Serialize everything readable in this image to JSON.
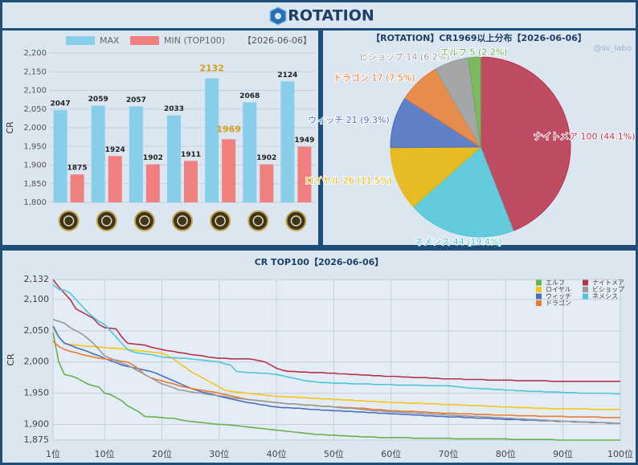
{
  "header": {
    "title": "ROTATION"
  },
  "chart_data": [
    {
      "type": "bar",
      "y_label": "CR",
      "subtitle": "【2026-06-06】",
      "highlight_color": "#d4a017",
      "categories": [
        null,
        null,
        null,
        null,
        null,
        null,
        null
      ],
      "series": [
        {
          "name": "MAX",
          "color": "#87ceeb",
          "values": [
            2047,
            2059,
            2057,
            2033,
            2132,
            2068,
            2124
          ]
        },
        {
          "name": "MIN (TOP100)",
          "color": "#f08080",
          "values": [
            1875,
            1924,
            1902,
            1911,
            1969,
            1902,
            1949
          ]
        }
      ],
      "ylim": [
        1800,
        2200
      ],
      "yticks": [
        {
          "value": 1800,
          "label": "1,800"
        },
        {
          "value": 1850,
          "label": "1,850"
        },
        {
          "value": 1900,
          "label": "1,900"
        },
        {
          "value": 1950,
          "label": "1,950"
        },
        {
          "value": 2000,
          "label": "2,000"
        },
        {
          "value": 2050,
          "label": "2,050"
        },
        {
          "value": 2100,
          "label": "2,100"
        },
        {
          "value": 2150,
          "label": "2,150"
        },
        {
          "value": 2200,
          "label": "2,200"
        }
      ],
      "grid": true
    },
    {
      "type": "pie",
      "title": "【ROTATION】CR1969以上分布【2026-06-06】",
      "watermark": "@sv_labo",
      "categories": [
        "ナイトメア",
        "ネメシス",
        "ロイヤル",
        "ウィッチ",
        "ドラゴン",
        "ビショップ",
        "エルフ"
      ],
      "values": [
        100,
        44,
        26,
        21,
        17,
        14,
        5
      ],
      "value_labels": [
        "ナイトメア 100 (44.1%)",
        "ネメシス 44 (19.4%)",
        "ロイヤル 26 (11.5%)",
        "ウィッチ 21 (9.3%)",
        "ドラゴン 17 (7.5%)",
        "ビショップ 14 (6.2%)",
        "エルフ 5 (2.2%)"
      ],
      "colors": [
        "#b8304a",
        "#4fc6d8",
        "#e8b400",
        "#4a6fc0",
        "#e87b30",
        "#9a9a9a",
        "#6ab04c"
      ]
    },
    {
      "type": "line",
      "title": "CR TOP100【2026-06-06】",
      "y_label": "CR",
      "grid": true,
      "x": [
        1,
        2,
        3,
        4,
        5,
        6,
        7,
        8,
        9,
        10,
        11,
        12,
        13,
        14,
        15,
        16,
        17,
        18,
        19,
        20,
        21,
        22,
        23,
        24,
        25,
        26,
        27,
        28,
        29,
        30,
        31,
        32,
        33,
        34,
        35,
        36,
        37,
        38,
        39,
        40,
        41,
        42,
        43,
        44,
        45,
        46,
        47,
        48,
        49,
        50,
        51,
        52,
        53,
        54,
        55,
        56,
        57,
        58,
        59,
        60,
        61,
        62,
        63,
        64,
        65,
        66,
        67,
        68,
        69,
        70,
        71,
        72,
        73,
        74,
        75,
        76,
        77,
        78,
        79,
        80,
        81,
        82,
        83,
        84,
        85,
        86,
        87,
        88,
        89,
        90,
        91,
        92,
        93,
        94,
        95,
        96,
        97,
        98,
        99,
        100
      ],
      "xlim": [
        1,
        100
      ],
      "xticks": [
        {
          "value": 1,
          "label": "1位"
        },
        {
          "value": 10,
          "label": "10位"
        },
        {
          "value": 20,
          "label": "20位"
        },
        {
          "value": 30,
          "label": "30位"
        },
        {
          "value": 40,
          "label": "40位"
        },
        {
          "value": 50,
          "label": "50位"
        },
        {
          "value": 60,
          "label": "60位"
        },
        {
          "value": 70,
          "label": "70位"
        },
        {
          "value": 80,
          "label": "80位"
        },
        {
          "value": 90,
          "label": "90位"
        },
        {
          "value": 100,
          "label": "100位"
        }
      ],
      "ylim": [
        1875,
        2132
      ],
      "yticks": [
        {
          "value": 1875,
          "label": "1,875"
        },
        {
          "value": 1900,
          "label": "1,900"
        },
        {
          "value": 1950,
          "label": "1,950"
        },
        {
          "value": 2000,
          "label": "2,000"
        },
        {
          "value": 2050,
          "label": "2,050"
        },
        {
          "value": 2100,
          "label": "2,100"
        },
        {
          "value": 2132,
          "label": "2,132"
        }
      ],
      "series": [
        {
          "name": "エルフ",
          "color": "#6ab04c",
          "values": [
            2047,
            2000,
            1980,
            1978,
            1975,
            1970,
            1965,
            1962,
            1960,
            1950,
            1948,
            1943,
            1938,
            1930,
            1925,
            1920,
            1913,
            1912,
            1912,
            1911,
            1910,
            1910,
            1908,
            1906,
            1905,
            1904,
            1903,
            1902,
            1901,
            1900,
            1900,
            1899,
            1898,
            1897,
            1896,
            1895,
            1894,
            1893,
            1892,
            1891,
            1890,
            1889,
            1888,
            1887,
            1886,
            1885,
            1884,
            1884,
            1883,
            1883,
            1882,
            1882,
            1881,
            1881,
            1880,
            1880,
            1880,
            1879,
            1879,
            1879,
            1879,
            1879,
            1879,
            1878,
            1878,
            1878,
            1878,
            1878,
            1878,
            1878,
            1877,
            1877,
            1877,
            1877,
            1877,
            1877,
            1877,
            1877,
            1877,
            1877,
            1876,
            1876,
            1876,
            1876,
            1876,
            1876,
            1876,
            1876,
            1875,
            1875,
            1875,
            1875,
            1875,
            1875,
            1875,
            1875,
            1875,
            1875,
            1875,
            1875
          ]
        },
        {
          "name": "ロイヤル",
          "color": "#f5c518",
          "values": [
            2059,
            2040,
            2030,
            2028,
            2027,
            2026,
            2025,
            2025,
            2024,
            2023,
            2022,
            2022,
            2021,
            2020,
            2019,
            2018,
            2017,
            2016,
            2015,
            2014,
            2010,
            2005,
            1998,
            1992,
            1985,
            1980,
            1975,
            1970,
            1965,
            1960,
            1955,
            1953,
            1952,
            1951,
            1950,
            1949,
            1948,
            1947,
            1946,
            1945,
            1945,
            1944,
            1944,
            1943,
            1943,
            1942,
            1942,
            1941,
            1941,
            1940,
            1940,
            1939,
            1939,
            1938,
            1938,
            1937,
            1937,
            1936,
            1936,
            1935,
            1935,
            1935,
            1934,
            1934,
            1934,
            1933,
            1933,
            1933,
            1932,
            1932,
            1932,
            1931,
            1931,
            1930,
            1930,
            1930,
            1929,
            1929,
            1928,
            1928,
            1928,
            1927,
            1927,
            1927,
            1926,
            1926,
            1926,
            1925,
            1925,
            1925,
            1925,
            1925,
            1925,
            1925,
            1924,
            1924,
            1924,
            1924,
            1924,
            1924
          ]
        },
        {
          "name": "ウィッチ",
          "color": "#4a6fc0",
          "values": [
            2057,
            2040,
            2030,
            2027,
            2023,
            2020,
            2017,
            2013,
            2010,
            2006,
            2002,
            1999,
            1995,
            1993,
            1991,
            1989,
            1987,
            1985,
            1982,
            1978,
            1974,
            1970,
            1966,
            1962,
            1958,
            1955,
            1952,
            1950,
            1948,
            1945,
            1943,
            1941,
            1939,
            1937,
            1935,
            1934,
            1932,
            1931,
            1929,
            1928,
            1927,
            1927,
            1926,
            1926,
            1925,
            1924,
            1924,
            1923,
            1923,
            1922,
            1922,
            1921,
            1921,
            1920,
            1920,
            1919,
            1919,
            1918,
            1918,
            1917,
            1917,
            1916,
            1916,
            1915,
            1915,
            1914,
            1914,
            1913,
            1913,
            1912,
            1912,
            1912,
            1911,
            1911,
            1910,
            1910,
            1910,
            1909,
            1909,
            1908,
            1908,
            1908,
            1907,
            1907,
            1907,
            1906,
            1906,
            1906,
            1905,
            1905,
            1905,
            1904,
            1904,
            1904,
            1903,
            1903,
            1903,
            1902,
            1902,
            1902
          ]
        },
        {
          "name": "ドラゴン",
          "color": "#e87b30",
          "values": [
            2033,
            2025,
            2020,
            2017,
            2015,
            2012,
            2010,
            2008,
            2006,
            2005,
            2004,
            2003,
            2001,
            2000,
            1995,
            1988,
            1980,
            1975,
            1972,
            1970,
            1967,
            1965,
            1962,
            1960,
            1958,
            1956,
            1955,
            1953,
            1952,
            1950,
            1948,
            1946,
            1944,
            1942,
            1940,
            1939,
            1938,
            1937,
            1936,
            1935,
            1934,
            1933,
            1933,
            1932,
            1931,
            1931,
            1930,
            1929,
            1929,
            1928,
            1928,
            1927,
            1927,
            1926,
            1926,
            1925,
            1924,
            1924,
            1923,
            1922,
            1922,
            1921,
            1921,
            1921,
            1920,
            1920,
            1919,
            1919,
            1918,
            1918,
            1918,
            1917,
            1917,
            1917,
            1916,
            1916,
            1916,
            1915,
            1915,
            1915,
            1915,
            1914,
            1914,
            1914,
            1914,
            1913,
            1913,
            1913,
            1913,
            1913,
            1912,
            1912,
            1912,
            1912,
            1912,
            1912,
            1911,
            1911,
            1911,
            1911
          ]
        },
        {
          "name": "ナイトメア",
          "color": "#b8304a",
          "values": [
            2132,
            2120,
            2110,
            2100,
            2085,
            2080,
            2075,
            2070,
            2060,
            2055,
            2054,
            2053,
            2040,
            2030,
            2029,
            2028,
            2027,
            2024,
            2022,
            2020,
            2018,
            2017,
            2015,
            2014,
            2012,
            2011,
            2010,
            2008,
            2007,
            2006,
            2006,
            2005,
            2005,
            2005,
            2005,
            2004,
            2002,
            2000,
            1995,
            1990,
            1987,
            1985,
            1985,
            1984,
            1984,
            1983,
            1983,
            1983,
            1982,
            1982,
            1981,
            1981,
            1980,
            1980,
            1979,
            1979,
            1978,
            1978,
            1977,
            1977,
            1977,
            1976,
            1976,
            1975,
            1975,
            1975,
            1974,
            1974,
            1973,
            1973,
            1973,
            1973,
            1972,
            1972,
            1972,
            1972,
            1971,
            1971,
            1971,
            1971,
            1971,
            1970,
            1970,
            1970,
            1970,
            1970,
            1970,
            1969,
            1969,
            1969,
            1969,
            1969,
            1969,
            1969,
            1969,
            1969,
            1969,
            1969,
            1969,
            1969
          ]
        },
        {
          "name": "ビショップ",
          "color": "#9a9a9a",
          "values": [
            2068,
            2065,
            2062,
            2055,
            2050,
            2045,
            2038,
            2030,
            2020,
            2010,
            2006,
            2002,
            1998,
            1995,
            1990,
            1985,
            1980,
            1975,
            1970,
            1965,
            1962,
            1959,
            1955,
            1954,
            1952,
            1951,
            1950,
            1948,
            1947,
            1946,
            1945,
            1943,
            1942,
            1941,
            1940,
            1939,
            1938,
            1937,
            1936,
            1935,
            1934,
            1933,
            1933,
            1932,
            1931,
            1931,
            1930,
            1929,
            1929,
            1928,
            1927,
            1926,
            1926,
            1925,
            1924,
            1923,
            1922,
            1922,
            1921,
            1920,
            1920,
            1919,
            1919,
            1918,
            1918,
            1917,
            1917,
            1916,
            1916,
            1915,
            1915,
            1914,
            1914,
            1913,
            1913,
            1912,
            1912,
            1911,
            1911,
            1910,
            1910,
            1909,
            1909,
            1908,
            1908,
            1907,
            1907,
            1906,
            1906,
            1905,
            1905,
            1905,
            1904,
            1904,
            1904,
            1903,
            1903,
            1903,
            1902,
            1902
          ]
        },
        {
          "name": "ネメシス",
          "color": "#4fc6d8",
          "values": [
            2124,
            2116,
            2115,
            2110,
            2100,
            2090,
            2080,
            2072,
            2065,
            2060,
            2050,
            2040,
            2030,
            2020,
            2016,
            2014,
            2013,
            2012,
            2010,
            2008,
            2007,
            2007,
            2006,
            2006,
            2005,
            2004,
            2003,
            2002,
            2001,
            2000,
            1997,
            1995,
            1985,
            1984,
            1983,
            1983,
            1982,
            1982,
            1981,
            1980,
            1978,
            1976,
            1974,
            1972,
            1970,
            1969,
            1968,
            1967,
            1967,
            1966,
            1966,
            1966,
            1965,
            1965,
            1965,
            1965,
            1964,
            1964,
            1964,
            1964,
            1963,
            1963,
            1963,
            1963,
            1963,
            1962,
            1962,
            1962,
            1962,
            1962,
            1961,
            1960,
            1959,
            1958,
            1958,
            1957,
            1957,
            1956,
            1956,
            1955,
            1955,
            1954,
            1954,
            1953,
            1953,
            1953,
            1952,
            1952,
            1952,
            1951,
            1951,
            1951,
            1950,
            1950,
            1950,
            1950,
            1950,
            1950,
            1949,
            1949
          ]
        }
      ]
    }
  ]
}
